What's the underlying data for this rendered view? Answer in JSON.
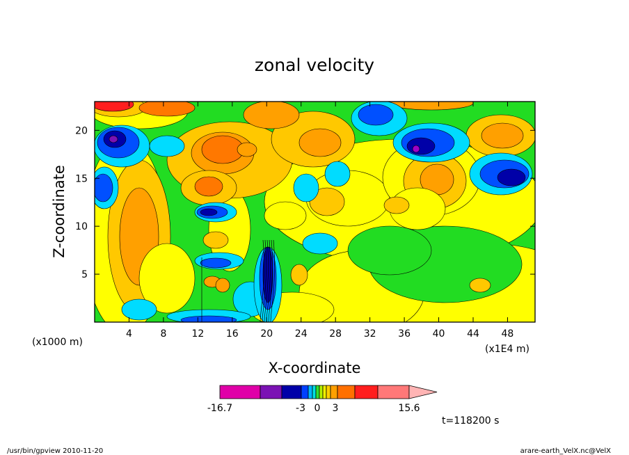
{
  "chart_data": {
    "type": "heatmap",
    "title": "zonal velocity",
    "xlabel": "X-coordinate",
    "ylabel": "Z-coordinate",
    "x_unit_label": "(x1E4 m)",
    "y_unit_label": "(x1000 m)",
    "x_ticks": [
      "4",
      "8",
      "12",
      "16",
      "20",
      "24",
      "28",
      "32",
      "36",
      "40",
      "44",
      "48"
    ],
    "x_tick_values": [
      4,
      8,
      12,
      16,
      20,
      24,
      28,
      32,
      36,
      40,
      44,
      48
    ],
    "y_ticks": [
      "5",
      "10",
      "15",
      "20"
    ],
    "y_tick_values": [
      5,
      10,
      15,
      20
    ],
    "xlim": [
      0,
      51.2
    ],
    "ylim": [
      0,
      23
    ],
    "colorbar": {
      "labels": [
        "-16.7",
        "-3",
        "0",
        "3",
        "15.6"
      ],
      "label_values": [
        -16.7,
        -3,
        0,
        3,
        15.6
      ],
      "colors": [
        "#e000a8",
        "#7b12b4",
        "#0000a8",
        "#0040ff",
        "#00b4ff",
        "#00e0e0",
        "#30e030",
        "#b4f000",
        "#f0f000",
        "#ffd000",
        "#ffa000",
        "#ff7000",
        "#ff1e1e",
        "#ff7878",
        "#ffb4b4"
      ],
      "extend": "max"
    },
    "field_colors": {
      "deep_purple": "#a000c8",
      "purple": "#7b12b4",
      "navy": "#0000a8",
      "blue": "#0050ff",
      "cyan": "#00dcff",
      "green": "#22dc22",
      "yellow": "#ffff00",
      "light_orange": "#ffc800",
      "orange": "#ffa000",
      "dark_orange": "#ff7800",
      "red": "#ff1e1e"
    },
    "time_label": "t=118200 s"
  },
  "footer": {
    "left": "/usr/bin/gpview   2010-11-20",
    "right": "arare-earth_VelX.nc@VelX"
  }
}
